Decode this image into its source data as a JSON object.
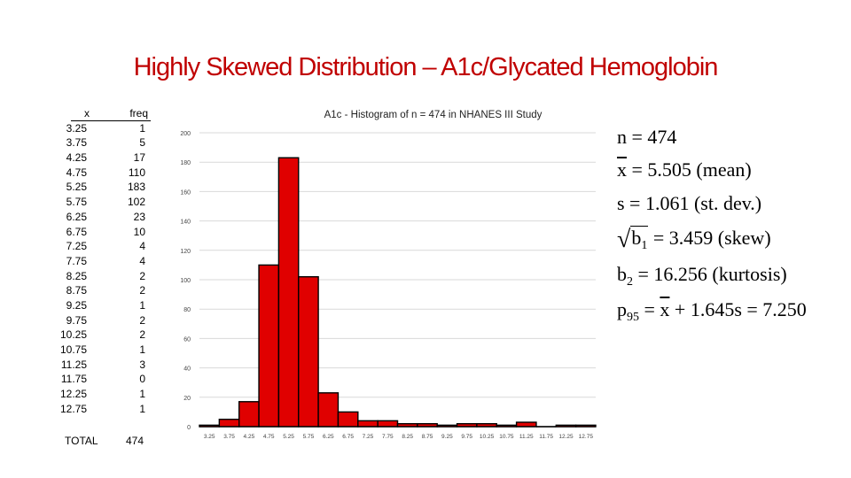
{
  "title": "Highly Skewed Distribution – A1c/Glycated Hemoglobin",
  "table": {
    "x_header": "x",
    "freq_header": "freq",
    "rows": [
      {
        "x": "3.25",
        "freq": "1"
      },
      {
        "x": "3.75",
        "freq": "5"
      },
      {
        "x": "4.25",
        "freq": "17"
      },
      {
        "x": "4.75",
        "freq": "110"
      },
      {
        "x": "5.25",
        "freq": "183"
      },
      {
        "x": "5.75",
        "freq": "102"
      },
      {
        "x": "6.25",
        "freq": "23"
      },
      {
        "x": "6.75",
        "freq": "10"
      },
      {
        "x": "7.25",
        "freq": "4"
      },
      {
        "x": "7.75",
        "freq": "4"
      },
      {
        "x": "8.25",
        "freq": "2"
      },
      {
        "x": "8.75",
        "freq": "2"
      },
      {
        "x": "9.25",
        "freq": "1"
      },
      {
        "x": "9.75",
        "freq": "2"
      },
      {
        "x": "10.25",
        "freq": "2"
      },
      {
        "x": "10.75",
        "freq": "1"
      },
      {
        "x": "11.25",
        "freq": "3"
      },
      {
        "x": "11.75",
        "freq": "0"
      },
      {
        "x": "12.25",
        "freq": "1"
      },
      {
        "x": "12.75",
        "freq": "1"
      }
    ],
    "total_label": "TOTAL",
    "total_value": "474"
  },
  "chart_data": {
    "type": "bar",
    "title": "A1c - Histogram of n = 474 in NHANES III Study",
    "categories": [
      "3.25",
      "3.75",
      "4.25",
      "4.75",
      "5.25",
      "5.75",
      "6.25",
      "6.75",
      "7.25",
      "7.75",
      "8.25",
      "8.75",
      "9.25",
      "9.75",
      "10.25",
      "10.75",
      "11.25",
      "11.75",
      "12.25",
      "12.75"
    ],
    "values": [
      1,
      5,
      17,
      110,
      183,
      102,
      23,
      10,
      4,
      4,
      2,
      2,
      1,
      2,
      2,
      1,
      3,
      0,
      1,
      1
    ],
    "yticks": [
      0,
      20,
      40,
      60,
      80,
      100,
      120,
      140,
      160,
      180,
      200
    ],
    "ylim": [
      0,
      200
    ],
    "xlabel": "",
    "ylabel": "",
    "grid": true,
    "bar_color": "#e00000",
    "bar_edge_color": "#000000",
    "grid_color": "#d9d9d9"
  },
  "stats": {
    "n": "n = 474",
    "mean_symbol": "x",
    "mean_rest": " = 5.505  (mean)",
    "sd": "s = 1.061  (st. dev.)",
    "skew_symbol": "b",
    "skew_sub": "1",
    "skew_rest": " = 3.459  (skew)",
    "kurt_symbol": "b",
    "kurt_sub": "2",
    "kurt_rest": " = 16.256  (kurtosis)",
    "p_symbol": "p",
    "p_sub": "95",
    "p_eq": " = ",
    "p_x": "x",
    "p_rest": " + 1.645s = 7.250"
  }
}
